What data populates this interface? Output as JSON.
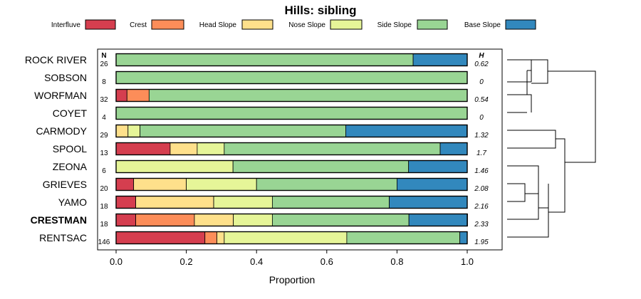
{
  "chart_data": {
    "type": "bar",
    "orientation": "horizontal",
    "stacked": true,
    "title": "Hills: sibling",
    "xlabel": "Proportion",
    "ylabel": "",
    "xlim": [
      0,
      1
    ],
    "xticks": [
      "0.0",
      "0.2",
      "0.4",
      "0.6",
      "0.8",
      "1.0"
    ],
    "n_header": "N",
    "h_header": "H",
    "legend_position": "top",
    "categories": [
      "ROCK RIVER",
      "SOBSON",
      "WORFMAN",
      "COYET",
      "CARMODY",
      "SPOOL",
      "ZEONA",
      "GRIEVES",
      "YAMO",
      "CRESTMAN",
      "RENTSAC"
    ],
    "highlight": "CRESTMAN",
    "n": [
      26,
      8,
      32,
      4,
      29,
      13,
      6,
      20,
      18,
      18,
      146
    ],
    "h": [
      "0.62",
      "0",
      "0.54",
      "0",
      "1.32",
      "1.7",
      "1.46",
      "2.08",
      "2.16",
      "2.33",
      "1.95"
    ],
    "series": [
      {
        "name": "Interfluve",
        "color": "#d53e4f",
        "values": [
          0,
          0,
          0.031,
          0,
          0,
          0.154,
          0,
          0.05,
          0.056,
          0.056,
          0.253
        ]
      },
      {
        "name": "Crest",
        "color": "#fc8d59",
        "values": [
          0,
          0,
          0.063,
          0,
          0,
          0,
          0,
          0,
          0,
          0.167,
          0.034
        ]
      },
      {
        "name": "Head Slope",
        "color": "#fee08b",
        "values": [
          0,
          0,
          0,
          0,
          0.034,
          0.077,
          0,
          0.15,
          0.222,
          0.111,
          0.021
        ]
      },
      {
        "name": "Nose Slope",
        "color": "#e6f598",
        "values": [
          0,
          0,
          0,
          0,
          0.034,
          0.077,
          0.333,
          0.2,
          0.167,
          0.111,
          0.349
        ]
      },
      {
        "name": "Side Slope",
        "color": "#99d594",
        "values": [
          0.846,
          1.0,
          0.906,
          1.0,
          0.586,
          0.615,
          0.5,
          0.4,
          0.333,
          0.389,
          0.322
        ]
      },
      {
        "name": "Base Slope",
        "color": "#3288bd",
        "values": [
          0.154,
          0,
          0,
          0,
          0.345,
          0.077,
          0.167,
          0.2,
          0.222,
          0.167,
          0.021
        ]
      }
    ],
    "dendrogram": "hierarchical clustering tree of series (right side)"
  }
}
